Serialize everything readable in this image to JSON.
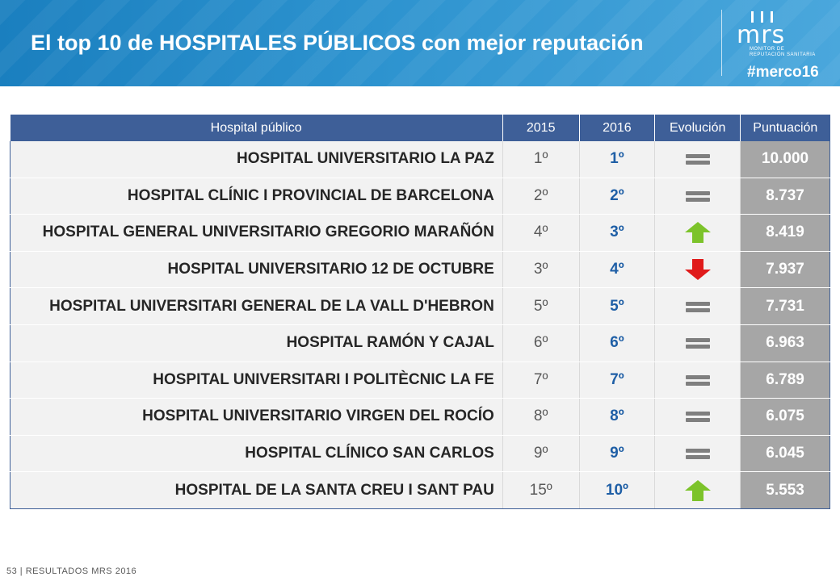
{
  "header": {
    "title": "El top 10 de HOSPITALES PÚBLICOS con mejor reputación",
    "logo": {
      "name": "mrs",
      "subtitle_line1": "MONITOR DE",
      "subtitle_line2": "REPUTACIÓN SANITARIA",
      "hashtag": "#merco16"
    }
  },
  "table": {
    "columns": [
      "Hospital público",
      "2015",
      "2016",
      "Evolución",
      "Puntuación"
    ],
    "rows": [
      {
        "name": "HOSPITAL UNIVERSITARIO LA PAZ",
        "y2015": "1º",
        "y2016": "1º",
        "evolution": "equal",
        "score": "10.000"
      },
      {
        "name": "HOSPITAL CLÍNIC I PROVINCIAL DE BARCELONA",
        "y2015": "2º",
        "y2016": "2º",
        "evolution": "equal",
        "score": "8.737"
      },
      {
        "name": "HOSPITAL GENERAL UNIVERSITARIO GREGORIO MARAÑÓN",
        "y2015": "4º",
        "y2016": "3º",
        "evolution": "up",
        "score": "8.419"
      },
      {
        "name": "HOSPITAL UNIVERSITARIO 12 DE OCTUBRE",
        "y2015": "3º",
        "y2016": "4º",
        "evolution": "down",
        "score": "7.937"
      },
      {
        "name": "HOSPITAL UNIVERSITARI GENERAL DE LA VALL D'HEBRON",
        "y2015": "5º",
        "y2016": "5º",
        "evolution": "equal",
        "score": "7.731"
      },
      {
        "name": "HOSPITAL RAMÓN Y CAJAL",
        "y2015": "6º",
        "y2016": "6º",
        "evolution": "equal",
        "score": "6.963"
      },
      {
        "name": "HOSPITAL UNIVERSITARI I POLITÈCNIC LA FE",
        "y2015": "7º",
        "y2016": "7º",
        "evolution": "equal",
        "score": "6.789"
      },
      {
        "name": "HOSPITAL UNIVERSITARIO VIRGEN DEL ROCÍO",
        "y2015": "8º",
        "y2016": "8º",
        "evolution": "equal",
        "score": "6.075"
      },
      {
        "name": "HOSPITAL CLÍNICO SAN CARLOS",
        "y2015": "9º",
        "y2016": "9º",
        "evolution": "equal",
        "score": "6.045"
      },
      {
        "name": "HOSPITAL DE LA SANTA CREU I SANT PAU",
        "y2015": "15º",
        "y2016": "10º",
        "evolution": "up",
        "score": "5.553"
      }
    ]
  },
  "colors": {
    "header_blue": "#1a7fbf",
    "table_header": "#3e5f98",
    "rank_blue": "#1f5fa6",
    "score_bg": "#a6a6a6",
    "up_arrow": "#7cc32a",
    "down_arrow": "#e01b1b",
    "equal_bar": "#7f7f7f"
  },
  "footer": {
    "text": "53 | RESULTADOS MRS 2016"
  }
}
